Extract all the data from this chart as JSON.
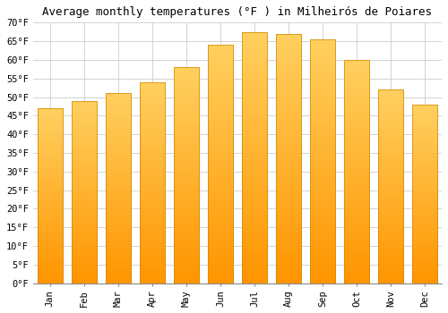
{
  "title": "Average monthly temperatures (°F ) in Milheirós de Poiares",
  "months": [
    "Jan",
    "Feb",
    "Mar",
    "Apr",
    "May",
    "Jun",
    "Jul",
    "Aug",
    "Sep",
    "Oct",
    "Nov",
    "Dec"
  ],
  "values": [
    47,
    49,
    51,
    54,
    58,
    64,
    67.5,
    67,
    65.5,
    60,
    52,
    48
  ],
  "bar_color_top": "#FFA500",
  "bar_color_bottom": "#FFB733",
  "background_color": "#FFFFFF",
  "grid_color": "#cccccc",
  "ylim": [
    0,
    70
  ],
  "ytick_step": 5,
  "title_fontsize": 9,
  "tick_fontsize": 7.5,
  "font_family": "monospace"
}
